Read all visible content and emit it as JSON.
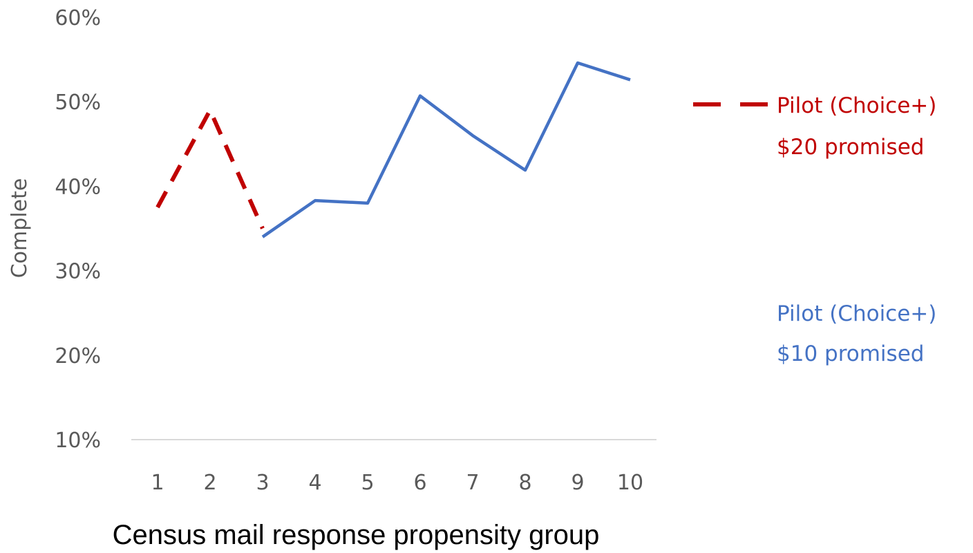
{
  "chart_data": {
    "type": "line",
    "x": [
      1,
      2,
      3,
      4,
      5,
      6,
      7,
      8,
      9,
      10
    ],
    "ylim": [
      0.1,
      0.6
    ],
    "yticks": [
      "10%",
      "20%",
      "30%",
      "40%",
      "50%",
      "60%"
    ],
    "ylabel": "Complete",
    "xlabel": "Census mail response propensity group",
    "grid": false,
    "legend_position": "right",
    "series": [
      {
        "name_line1": "Pilot (Choice+)",
        "name_line2": "$20 promised",
        "x": [
          1,
          2,
          3
        ],
        "values": [
          0.375,
          0.49,
          0.35
        ],
        "color": "#C00000",
        "style": "dashed"
      },
      {
        "name_line1": "Pilot (Choice+)",
        "name_line2": "$10 promised",
        "x": [
          3,
          4,
          5,
          6,
          7,
          8,
          9,
          10
        ],
        "values": [
          0.34,
          0.383,
          0.38,
          0.507,
          0.46,
          0.419,
          0.546,
          0.526
        ],
        "color": "#4472C4",
        "style": "solid"
      }
    ]
  }
}
